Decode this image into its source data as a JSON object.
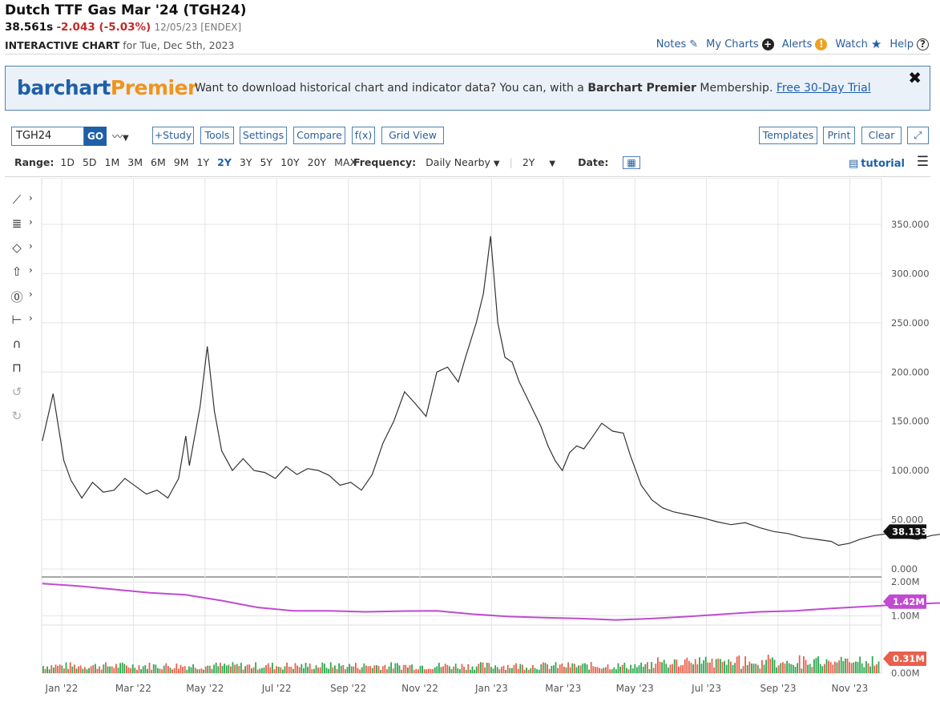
{
  "header": {
    "title": "Dutch TTF Gas Mar '24 (TGH24)",
    "last": "38.561s",
    "change": "-2.043 (-5.03%)",
    "meta": "12/05/23 [ENDEX]",
    "subtitle_bold": "INTERACTIVE CHART",
    "subtitle_rest": "for Tue, Dec 5th, 2023"
  },
  "toplinks": {
    "notes": "Notes",
    "mycharts": "My Charts",
    "alerts": "Alerts",
    "watch": "Watch",
    "help": "Help"
  },
  "banner": {
    "brand_a": "barchart",
    "brand_b": "Premier",
    "text_a": "Want to download historical chart and indicator data? You can, with a ",
    "text_bold": "Barchart Premier",
    "text_b": " Membership. ",
    "link": "Free 30-Day Trial",
    "close": "✖"
  },
  "toolbar": {
    "symbol": "TGH24",
    "go": "GO",
    "study": "+Study",
    "tools": "Tools",
    "settings": "Settings",
    "compare": "Compare",
    "fx": "f(x)",
    "gridview": "Grid View",
    "templates": "Templates",
    "print": "Print",
    "clear": "Clear",
    "expand": "⤢"
  },
  "rangebar": {
    "label": "Range:",
    "ranges": [
      "1D",
      "5D",
      "1M",
      "3M",
      "6M",
      "9M",
      "1Y",
      "2Y",
      "3Y",
      "5Y",
      "10Y",
      "20Y",
      "MAX"
    ],
    "selected": "2Y",
    "freq_label": "Frequency:",
    "freq_value": "Daily Nearby",
    "period": "2Y",
    "date_label": "Date:",
    "tutorial": "tutorial"
  },
  "colors": {
    "accent": "#1f5fa8",
    "down": "#c62828",
    "price_line": "#333333",
    "oi_line": "#c04bd0",
    "vol_up": "#2fa84f",
    "vol_down": "#e8604c"
  },
  "chart_data": {
    "type": "line",
    "x_ticks": [
      "Jan '22",
      "Mar '22",
      "May '22",
      "Jul '22",
      "Sep '22",
      "Nov '22",
      "Jan '23",
      "Mar '23",
      "May '23",
      "Jul '23",
      "Sep '23",
      "Nov '23"
    ],
    "price": {
      "y_ticks": [
        "350.000",
        "300.000",
        "250.000",
        "200.000",
        "150.000",
        "100.000",
        "50.000",
        "0.000"
      ],
      "ylim": [
        0,
        350
      ],
      "last_label": "38.133",
      "values": [
        [
          0,
          130
        ],
        [
          0.15,
          178
        ],
        [
          0.3,
          110
        ],
        [
          0.4,
          90
        ],
        [
          0.55,
          72
        ],
        [
          0.7,
          88
        ],
        [
          0.85,
          78
        ],
        [
          1.0,
          80
        ],
        [
          1.15,
          92
        ],
        [
          1.3,
          84
        ],
        [
          1.45,
          76
        ],
        [
          1.6,
          80
        ],
        [
          1.75,
          72
        ],
        [
          1.9,
          92
        ],
        [
          2.0,
          135
        ],
        [
          2.05,
          105
        ],
        [
          2.2,
          165
        ],
        [
          2.3,
          226
        ],
        [
          2.4,
          160
        ],
        [
          2.5,
          120
        ],
        [
          2.65,
          100
        ],
        [
          2.8,
          112
        ],
        [
          2.95,
          100
        ],
        [
          3.1,
          98
        ],
        [
          3.25,
          92
        ],
        [
          3.4,
          104
        ],
        [
          3.55,
          96
        ],
        [
          3.7,
          102
        ],
        [
          3.85,
          100
        ],
        [
          4.0,
          95
        ],
        [
          4.15,
          85
        ],
        [
          4.3,
          88
        ],
        [
          4.45,
          80
        ],
        [
          4.6,
          96
        ],
        [
          4.75,
          128
        ],
        [
          4.9,
          150
        ],
        [
          5.05,
          180
        ],
        [
          5.2,
          168
        ],
        [
          5.35,
          155
        ],
        [
          5.5,
          200
        ],
        [
          5.65,
          205
        ],
        [
          5.8,
          190
        ],
        [
          5.9,
          215
        ],
        [
          6.05,
          250
        ],
        [
          6.15,
          280
        ],
        [
          6.25,
          338
        ],
        [
          6.35,
          250
        ],
        [
          6.45,
          215
        ],
        [
          6.55,
          210
        ],
        [
          6.65,
          190
        ],
        [
          6.75,
          175
        ],
        [
          6.85,
          160
        ],
        [
          6.95,
          145
        ],
        [
          7.05,
          125
        ],
        [
          7.15,
          110
        ],
        [
          7.25,
          100
        ],
        [
          7.35,
          118
        ],
        [
          7.45,
          125
        ],
        [
          7.55,
          122
        ],
        [
          7.65,
          132
        ],
        [
          7.8,
          148
        ],
        [
          7.95,
          140
        ],
        [
          8.1,
          138
        ],
        [
          8.2,
          115
        ],
        [
          8.35,
          85
        ],
        [
          8.5,
          70
        ],
        [
          8.65,
          62
        ],
        [
          8.8,
          58
        ],
        [
          9.0,
          55
        ],
        [
          9.2,
          52
        ],
        [
          9.4,
          48
        ],
        [
          9.6,
          45
        ],
        [
          9.8,
          47
        ],
        [
          10.0,
          42
        ],
        [
          10.2,
          38
        ],
        [
          10.4,
          36
        ],
        [
          10.6,
          32
        ],
        [
          10.8,
          30
        ],
        [
          11.0,
          28
        ],
        [
          11.1,
          24
        ],
        [
          11.25,
          26
        ],
        [
          11.4,
          30
        ],
        [
          11.6,
          34
        ],
        [
          11.8,
          36
        ],
        [
          12.0,
          32
        ],
        [
          12.2,
          30
        ],
        [
          12.4,
          34
        ],
        [
          12.6,
          36
        ],
        [
          12.8,
          38
        ],
        [
          13.0,
          40
        ],
        [
          13.2,
          44
        ],
        [
          13.4,
          46
        ],
        [
          13.6,
          44
        ],
        [
          13.8,
          50
        ],
        [
          14.0,
          52
        ],
        [
          14.2,
          48
        ],
        [
          14.4,
          46
        ],
        [
          14.6,
          44
        ],
        [
          14.75,
          38
        ]
      ]
    },
    "open_interest": {
      "y_ticks": [
        "2.00M",
        "1.00M"
      ],
      "ylim": [
        0.5,
        2.2
      ],
      "last_label": "1.42M",
      "values": [
        [
          0,
          1.95
        ],
        [
          0.5,
          1.88
        ],
        [
          1.0,
          1.78
        ],
        [
          1.5,
          1.68
        ],
        [
          2.0,
          1.62
        ],
        [
          2.5,
          1.45
        ],
        [
          3.0,
          1.25
        ],
        [
          3.5,
          1.15
        ],
        [
          4.0,
          1.15
        ],
        [
          4.5,
          1.12
        ],
        [
          5.0,
          1.14
        ],
        [
          5.5,
          1.15
        ],
        [
          6.0,
          1.05
        ],
        [
          6.5,
          0.98
        ],
        [
          7.0,
          0.95
        ],
        [
          7.5,
          0.92
        ],
        [
          8.0,
          0.88
        ],
        [
          8.5,
          0.92
        ],
        [
          9.0,
          0.98
        ],
        [
          9.5,
          1.05
        ],
        [
          10.0,
          1.12
        ],
        [
          10.5,
          1.15
        ],
        [
          11.0,
          1.22
        ],
        [
          11.5,
          1.28
        ],
        [
          12.0,
          1.34
        ],
        [
          12.5,
          1.38
        ],
        [
          13.0,
          1.38
        ],
        [
          13.5,
          1.42
        ],
        [
          14.0,
          1.45
        ],
        [
          14.5,
          1.42
        ],
        [
          14.75,
          1.42
        ]
      ]
    },
    "volume": {
      "y_ticks": [
        "0.00M"
      ],
      "last_label": "0.31M"
    }
  }
}
